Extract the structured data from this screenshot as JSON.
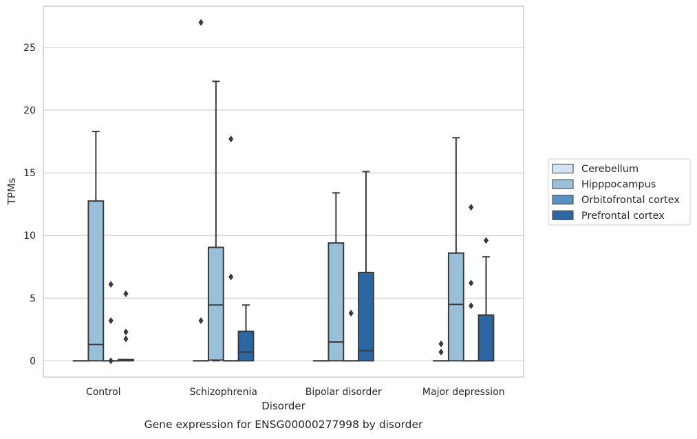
{
  "chart_data": {
    "type": "box",
    "title": "",
    "caption": "Gene expression for ENSG00000277998 by disorder",
    "xlabel": "Disorder",
    "ylabel": "TPMs",
    "ylim": [
      -1.3,
      28.3
    ],
    "yticks": [
      0,
      5,
      10,
      15,
      20,
      25
    ],
    "grid": "horizontal",
    "legend_placement": "right",
    "categories": [
      "Control",
      "Schizophrenia",
      "Bipolar disorder",
      "Major depression"
    ],
    "series": [
      {
        "name": "Cerebellum",
        "color": "#d2e3f3",
        "boxes": [
          {
            "q1": 0,
            "median": 0,
            "q3": 0,
            "whisker_low": 0,
            "whisker_high": 0,
            "outliers": []
          },
          {
            "q1": 0,
            "median": 0,
            "q3": 0,
            "whisker_low": 0,
            "whisker_high": 0,
            "outliers": [
              3.2,
              27.0
            ]
          },
          {
            "q1": 0,
            "median": 0,
            "q3": 0,
            "whisker_low": 0,
            "whisker_high": 0,
            "outliers": []
          },
          {
            "q1": 0,
            "median": 0,
            "q3": 0,
            "whisker_low": 0,
            "whisker_high": 0,
            "outliers": [
              0.7,
              1.35
            ]
          }
        ]
      },
      {
        "name": "Hipppocampus",
        "color": "#9ac0d9",
        "boxes": [
          {
            "q1": 0,
            "median": 1.3,
            "q3": 12.75,
            "whisker_low": 0,
            "whisker_high": 18.3,
            "outliers": []
          },
          {
            "q1": 0.05,
            "median": 4.45,
            "q3": 9.05,
            "whisker_low": 0,
            "whisker_high": 22.3,
            "outliers": []
          },
          {
            "q1": 0,
            "median": 1.5,
            "q3": 9.4,
            "whisker_low": 0,
            "whisker_high": 13.4,
            "outliers": []
          },
          {
            "q1": 0,
            "median": 4.5,
            "q3": 8.6,
            "whisker_low": 0,
            "whisker_high": 17.8,
            "outliers": []
          }
        ]
      },
      {
        "name": "Orbitofrontal cortex",
        "color": "#5a91c0",
        "boxes": [
          {
            "q1": 0,
            "median": 0,
            "q3": 0,
            "whisker_low": 0,
            "whisker_high": 0,
            "outliers": [
              0,
              3.2,
              6.1
            ]
          },
          {
            "q1": 0,
            "median": 0,
            "q3": 0,
            "whisker_low": 0,
            "whisker_high": 0,
            "outliers": [
              6.7,
              17.7
            ]
          },
          {
            "q1": 0,
            "median": 0,
            "q3": 0,
            "whisker_low": 0,
            "whisker_high": 0,
            "outliers": [
              3.8
            ]
          },
          {
            "q1": 0,
            "median": 0,
            "q3": 0,
            "whisker_low": 0,
            "whisker_high": 0,
            "outliers": [
              4.4,
              6.2,
              12.25
            ]
          }
        ]
      },
      {
        "name": "Prefrontal cortex",
        "color": "#2d67a3",
        "boxes": [
          {
            "q1": 0,
            "median": 0.05,
            "q3": 0.1,
            "whisker_low": 0,
            "whisker_high": 0.1,
            "outliers": [
              1.75,
              2.3,
              5.35
            ]
          },
          {
            "q1": 0,
            "median": 0.7,
            "q3": 2.35,
            "whisker_low": 0,
            "whisker_high": 4.45,
            "outliers": []
          },
          {
            "q1": 0,
            "median": 0.8,
            "q3": 7.05,
            "whisker_low": 0,
            "whisker_high": 15.1,
            "outliers": []
          },
          {
            "q1": 0,
            "median": 0,
            "q3": 3.65,
            "whisker_low": 0,
            "whisker_high": 8.3,
            "outliers": [
              9.6
            ]
          }
        ]
      }
    ]
  },
  "colors": {
    "box_edge": "#3a3a3a",
    "grid": "#d0d0d0",
    "frame": "#cccccc"
  }
}
